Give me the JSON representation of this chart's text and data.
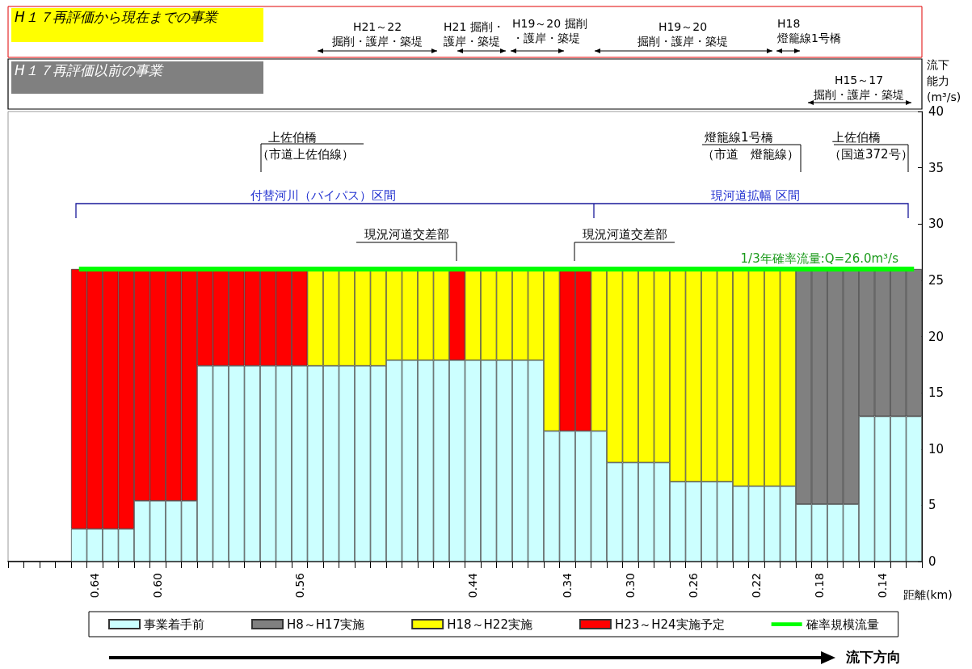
{
  "chart_data": {
    "type": "bar",
    "stacked": true,
    "legend": "bottom",
    "marker": "none",
    "xlabel": "距離(km)",
    "ylabel": "流下能力(m³/s)",
    "ylim": [
      0,
      40
    ],
    "yticks": [
      0,
      5,
      10,
      15,
      20,
      25,
      30,
      35,
      40
    ],
    "categories": [
      null,
      null,
      null,
      null,
      null,
      "0.64",
      null,
      null,
      null,
      "0.60",
      null,
      null,
      null,
      null,
      null,
      null,
      null,
      null,
      "0.56",
      null,
      null,
      null,
      null,
      null,
      null,
      null,
      null,
      null,
      null,
      "0.44",
      null,
      null,
      null,
      null,
      null,
      "0.34",
      null,
      null,
      null,
      "0.30",
      null,
      null,
      null,
      "0.26",
      null,
      null,
      null,
      "0.22",
      null,
      null,
      null,
      "0.18",
      null,
      null,
      null,
      "0.14",
      null,
      null
    ],
    "series": [
      {
        "name": "事業着手前",
        "color": "#ccffff",
        "values": [
          null,
          null,
          null,
          null,
          2.9,
          2.9,
          2.9,
          2.9,
          5.4,
          5.4,
          5.4,
          5.4,
          17.4,
          17.4,
          17.4,
          17.4,
          17.4,
          17.4,
          17.4,
          17.4,
          17.4,
          17.4,
          17.4,
          17.4,
          17.9,
          17.9,
          17.9,
          17.9,
          17.9,
          17.9,
          17.9,
          17.9,
          17.9,
          17.9,
          11.6,
          11.6,
          11.6,
          11.6,
          8.8,
          8.8,
          8.8,
          8.8,
          7.1,
          7.1,
          7.1,
          7.1,
          6.7,
          6.7,
          6.7,
          6.7,
          5.1,
          5.1,
          5.1,
          5.1,
          12.9,
          12.9,
          12.9,
          12.9
        ]
      },
      {
        "name": "H8～H17実施",
        "color": "#808080",
        "values": [
          null,
          null,
          null,
          null,
          null,
          null,
          null,
          null,
          null,
          null,
          null,
          null,
          null,
          null,
          null,
          null,
          null,
          null,
          null,
          null,
          null,
          null,
          null,
          null,
          null,
          null,
          null,
          null,
          null,
          null,
          null,
          null,
          null,
          null,
          null,
          null,
          null,
          null,
          null,
          null,
          null,
          null,
          null,
          null,
          null,
          null,
          null,
          null,
          null,
          null,
          20.9,
          20.9,
          20.9,
          20.9,
          13.1,
          13.1,
          13.1,
          13.1
        ]
      },
      {
        "name": "H18～H22実施",
        "color": "#ffff00",
        "values": [
          null,
          null,
          null,
          null,
          null,
          null,
          null,
          null,
          null,
          null,
          null,
          null,
          null,
          null,
          null,
          null,
          null,
          null,
          null,
          8.6,
          8.6,
          8.6,
          8.6,
          8.6,
          8.1,
          8.1,
          8.1,
          8.1,
          null,
          8.1,
          8.1,
          8.1,
          8.1,
          8.1,
          14.4,
          null,
          null,
          14.4,
          17.2,
          17.2,
          17.2,
          17.2,
          18.9,
          18.9,
          18.9,
          18.9,
          19.3,
          19.3,
          19.3,
          19.3,
          null,
          null,
          null,
          null,
          null,
          null,
          null,
          null
        ]
      },
      {
        "name": "H23～H24実施予定",
        "color": "#ff0000",
        "values": [
          null,
          null,
          null,
          null,
          23.1,
          23.1,
          23.1,
          23.1,
          20.6,
          20.6,
          20.6,
          20.6,
          8.6,
          8.6,
          8.6,
          8.6,
          8.6,
          8.6,
          8.6,
          null,
          null,
          null,
          null,
          null,
          null,
          null,
          null,
          null,
          8.1,
          null,
          null,
          null,
          null,
          null,
          null,
          14.4,
          14.4,
          null,
          null,
          null,
          null,
          null,
          null,
          null,
          null,
          null,
          null,
          null,
          null,
          null,
          null,
          null,
          null,
          null,
          null,
          null,
          null,
          null
        ]
      },
      {
        "name": "確率規模流量",
        "type": "line",
        "color": "#00ff00",
        "values": [
          null,
          null,
          null,
          null,
          26,
          26,
          26,
          26,
          26,
          26,
          26,
          26,
          26,
          26,
          26,
          26,
          26,
          26,
          26,
          26,
          26,
          26,
          26,
          26,
          26,
          26,
          26,
          26,
          26,
          26,
          26,
          26,
          26,
          26,
          26,
          26,
          26,
          26,
          26,
          26,
          26,
          26,
          26,
          26,
          26,
          26,
          26,
          26,
          26,
          26,
          26,
          26,
          26,
          26,
          26,
          26,
          26,
          26
        ]
      }
    ],
    "annotations": [
      "H１７再評価から現在までの事業",
      "H21～22",
      "掘削・護岸・築堤",
      "H21 掘削・",
      "護岸・築堤",
      "H19～20 掘削",
      "・護岸・築堤",
      "H19～20",
      "掘削・護岸・築堤",
      "H18",
      "燈籠線1号橋",
      "H１７再評価以前の事業",
      "H15～17",
      "掘削・護岸・築堤",
      "上佐伯橋",
      "（市道上佐伯線）",
      "燈籠線1号橋",
      "（市道　燈籠線）",
      "上佐伯橋",
      "（国道372号）",
      "付替河川（バイパス）区間",
      "現河道拡幅 区間",
      "現況河道交差部",
      "現況河道交差部",
      "1/3年確率流量:Q=26.0m³/s",
      "流下方向"
    ]
  }
}
